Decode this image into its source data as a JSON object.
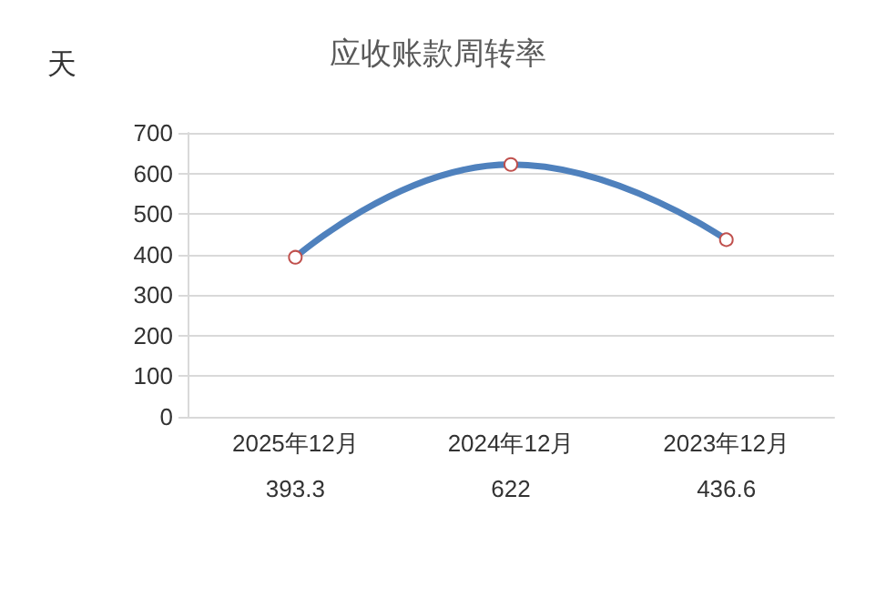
{
  "chart_data": {
    "type": "line",
    "title": "应收账款周转率",
    "ylabel": "天",
    "categories": [
      "2025年12月",
      "2024年12月",
      "2023年12月"
    ],
    "series": [
      {
        "color": "#4f81bd",
        "values": [
          393.3,
          622,
          436.6
        ]
      }
    ],
    "ylim": [
      0,
      700
    ],
    "yticks": [
      0,
      100,
      200,
      300,
      400,
      500,
      600,
      700
    ],
    "grid": "y",
    "marker": "circle",
    "line_style": "solid",
    "data_labels": true
  }
}
